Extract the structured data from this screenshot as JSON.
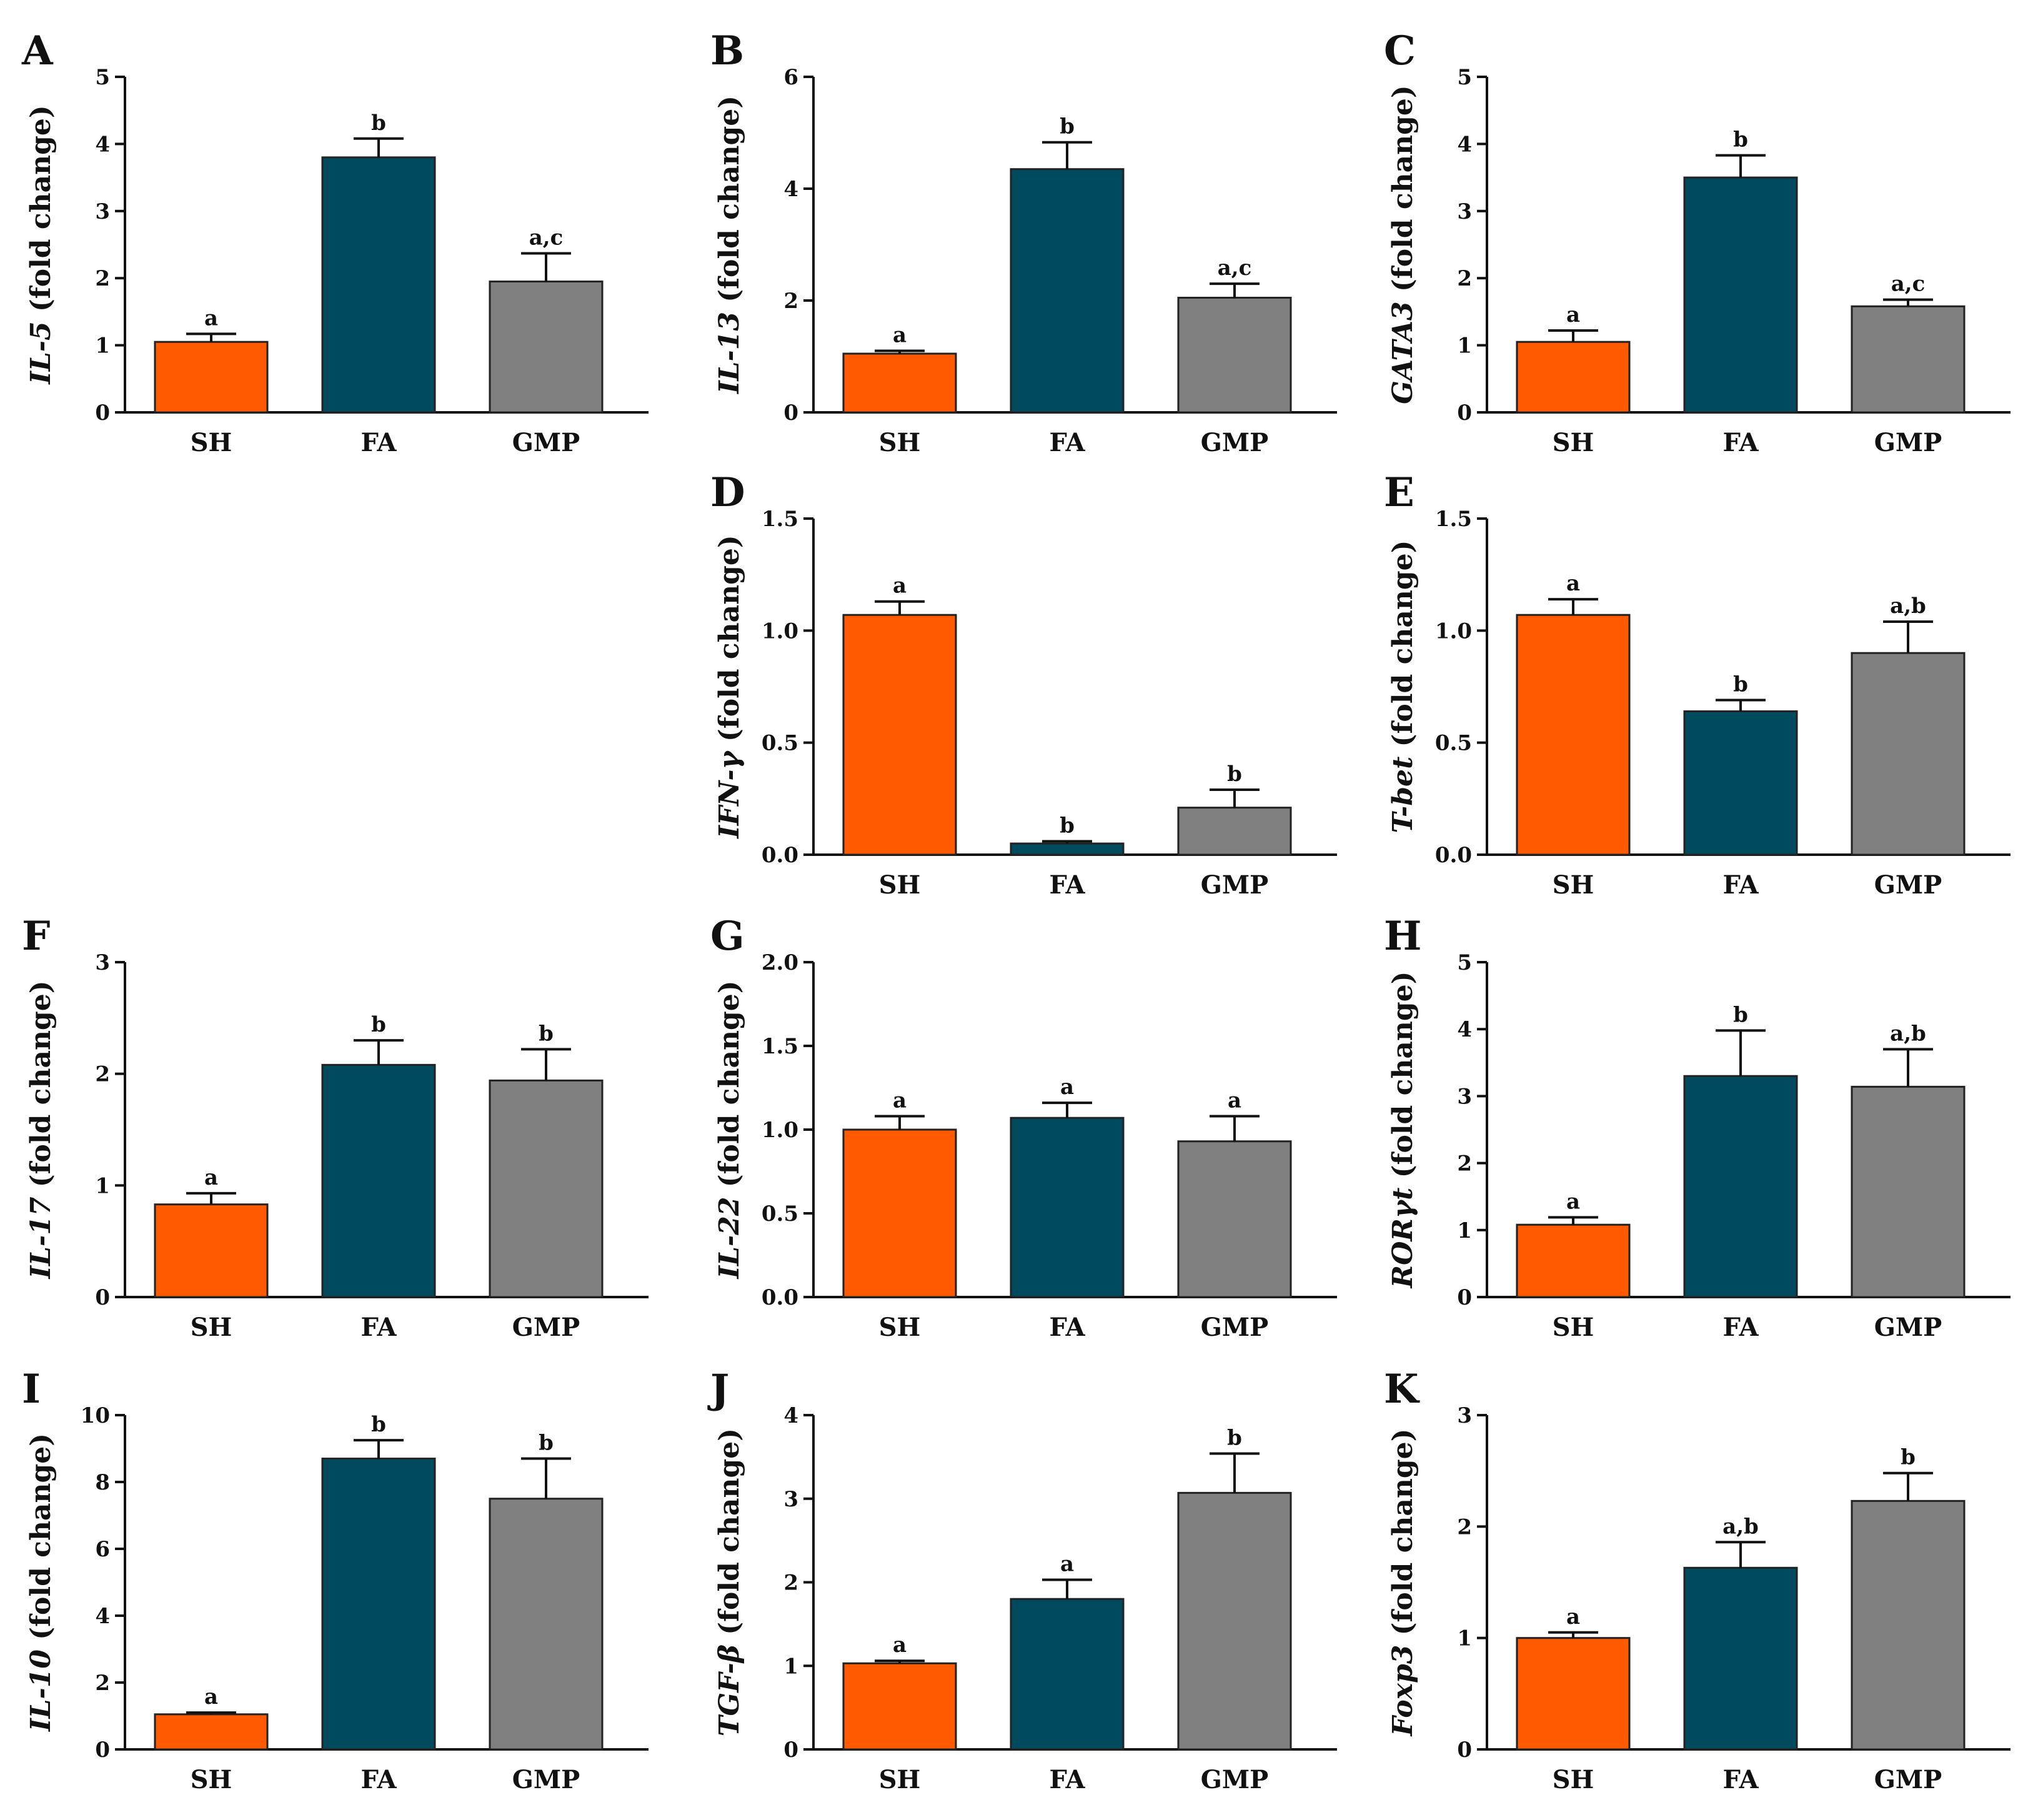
{
  "figure": {
    "category_labels": [
      "SH",
      "FA",
      "GMP"
    ],
    "colors": {
      "SH": "#ff5a00",
      "FA": "#004a5e",
      "GMP": "#808080",
      "axis": "#111111"
    }
  },
  "chart_data": [
    {
      "type": "bar",
      "panel": "A",
      "gene": "IL-5",
      "ylabel_suffix": " (fold change)",
      "categories": [
        "SH",
        "FA",
        "GMP"
      ],
      "values": [
        1.05,
        3.8,
        1.95
      ],
      "errors": [
        0.12,
        0.28,
        0.42
      ],
      "significance": [
        "a",
        "b",
        "a,c"
      ],
      "ylim": [
        0,
        5
      ],
      "yticks": [
        "0",
        "1",
        "2",
        "3",
        "4",
        "5"
      ]
    },
    {
      "type": "bar",
      "panel": "B",
      "gene": "IL-13",
      "ylabel_suffix": " (fold change)",
      "categories": [
        "SH",
        "FA",
        "GMP"
      ],
      "values": [
        1.05,
        4.35,
        2.05
      ],
      "errors": [
        0.05,
        0.48,
        0.25
      ],
      "significance": [
        "a",
        "b",
        "a,c"
      ],
      "ylim": [
        0,
        6
      ],
      "yticks": [
        "0",
        "2",
        "4",
        "6"
      ]
    },
    {
      "type": "bar",
      "panel": "C",
      "gene": "GATA3",
      "ylabel_suffix": " (fold change)",
      "categories": [
        "SH",
        "FA",
        "GMP"
      ],
      "values": [
        1.05,
        3.5,
        1.58
      ],
      "errors": [
        0.17,
        0.33,
        0.1
      ],
      "significance": [
        "a",
        "b",
        "a,c"
      ],
      "ylim": [
        0,
        5
      ],
      "yticks": [
        "0",
        "1",
        "2",
        "3",
        "4",
        "5"
      ]
    },
    {
      "type": "bar",
      "panel": "D",
      "gene": "IFN-γ",
      "ylabel_suffix": " (fold change)",
      "categories": [
        "SH",
        "FA",
        "GMP"
      ],
      "values": [
        1.07,
        0.05,
        0.21
      ],
      "errors": [
        0.06,
        0.01,
        0.08
      ],
      "significance": [
        "a",
        "b",
        "b"
      ],
      "ylim": [
        0,
        1.5
      ],
      "yticks": [
        "0.0",
        "0.5",
        "1.0",
        "1.5"
      ]
    },
    {
      "type": "bar",
      "panel": "E",
      "gene": "T-bet",
      "ylabel_suffix": " (fold change)",
      "categories": [
        "SH",
        "FA",
        "GMP"
      ],
      "values": [
        1.07,
        0.64,
        0.9
      ],
      "errors": [
        0.07,
        0.05,
        0.14
      ],
      "significance": [
        "a",
        "b",
        "a,b"
      ],
      "ylim": [
        0,
        1.5
      ],
      "yticks": [
        "0.0",
        "0.5",
        "1.0",
        "1.5"
      ]
    },
    {
      "type": "bar",
      "panel": "F",
      "gene": "IL-17",
      "ylabel_suffix": " (fold change)",
      "categories": [
        "SH",
        "FA",
        "GMP"
      ],
      "values": [
        0.83,
        2.08,
        1.94
      ],
      "errors": [
        0.1,
        0.22,
        0.28
      ],
      "significance": [
        "a",
        "b",
        "b"
      ],
      "ylim": [
        0,
        3
      ],
      "yticks": [
        "0",
        "1",
        "2",
        "3"
      ]
    },
    {
      "type": "bar",
      "panel": "G",
      "gene": "IL-22",
      "ylabel_suffix": " (fold change)",
      "categories": [
        "SH",
        "FA",
        "GMP"
      ],
      "values": [
        1.0,
        1.07,
        0.93
      ],
      "errors": [
        0.08,
        0.09,
        0.15
      ],
      "significance": [
        "a",
        "a",
        "a"
      ],
      "ylim": [
        0,
        2.0
      ],
      "yticks": [
        "0.0",
        "0.5",
        "1.0",
        "1.5",
        "2.0"
      ]
    },
    {
      "type": "bar",
      "panel": "H",
      "gene": "RORγt",
      "ylabel_suffix": " (fold change)",
      "categories": [
        "SH",
        "FA",
        "GMP"
      ],
      "values": [
        1.08,
        3.3,
        3.14
      ],
      "errors": [
        0.11,
        0.68,
        0.56
      ],
      "significance": [
        "a",
        "b",
        "a,b"
      ],
      "ylim": [
        0,
        5
      ],
      "yticks": [
        "0",
        "1",
        "2",
        "3",
        "4",
        "5"
      ]
    },
    {
      "type": "bar",
      "panel": "I",
      "gene": "IL-10",
      "ylabel_suffix": " (fold change)",
      "categories": [
        "SH",
        "FA",
        "GMP"
      ],
      "values": [
        1.05,
        8.7,
        7.5
      ],
      "errors": [
        0.05,
        0.55,
        1.2
      ],
      "significance": [
        "a",
        "b",
        "b"
      ],
      "ylim": [
        0,
        10
      ],
      "yticks": [
        "0",
        "2",
        "4",
        "6",
        "8",
        "10"
      ]
    },
    {
      "type": "bar",
      "panel": "J",
      "gene": "TGF-β",
      "ylabel_suffix": " (fold change)",
      "categories": [
        "SH",
        "FA",
        "GMP"
      ],
      "values": [
        1.03,
        1.8,
        3.07
      ],
      "errors": [
        0.03,
        0.23,
        0.47
      ],
      "significance": [
        "a",
        "a",
        "b"
      ],
      "ylim": [
        0,
        4
      ],
      "yticks": [
        "0",
        "1",
        "2",
        "3",
        "4"
      ]
    },
    {
      "type": "bar",
      "panel": "K",
      "gene": "Foxp3",
      "ylabel_suffix": " (fold change)",
      "categories": [
        "SH",
        "FA",
        "GMP"
      ],
      "values": [
        1.0,
        1.63,
        2.23
      ],
      "errors": [
        0.05,
        0.23,
        0.25
      ],
      "significance": [
        "a",
        "a,b",
        "b"
      ],
      "ylim": [
        0,
        3
      ],
      "yticks": [
        "0",
        "1",
        "2",
        "3"
      ]
    }
  ]
}
